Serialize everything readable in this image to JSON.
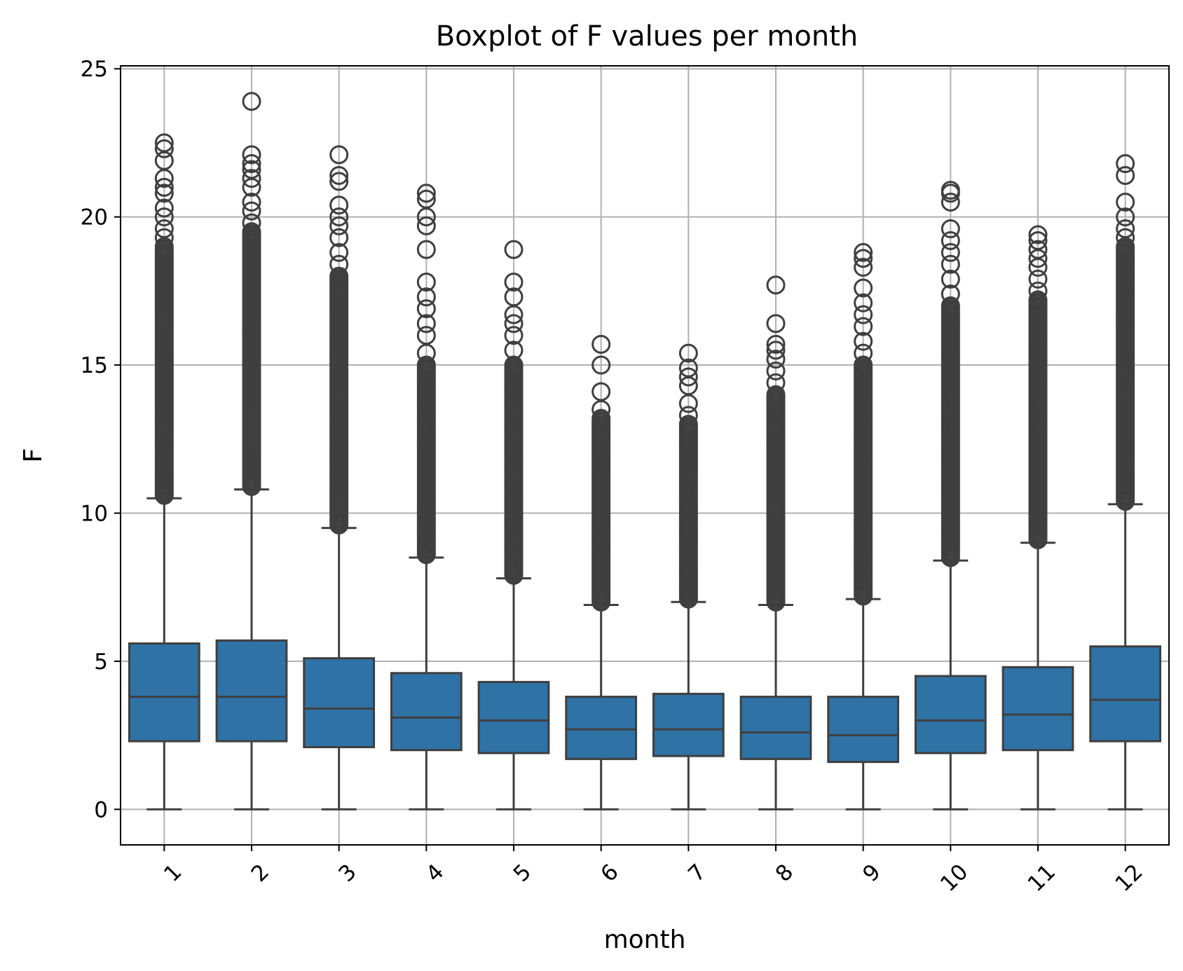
{
  "chart_data": {
    "type": "boxplot",
    "title": "Boxplot of F values per month",
    "xlabel": "month",
    "ylabel": "F",
    "ylim": [
      -1.2,
      25.1
    ],
    "yticks": [
      "0",
      "5",
      "10",
      "15",
      "20",
      "25"
    ],
    "grid": true,
    "box_color": "#2e72a6",
    "line_color": "#3f3f3f",
    "categories": [
      "1",
      "2",
      "3",
      "4",
      "5",
      "6",
      "7",
      "8",
      "9",
      "10",
      "11",
      "12"
    ],
    "boxes": [
      {
        "month": "1",
        "whislo": 0,
        "q1": 2.3,
        "med": 3.8,
        "q3": 5.6,
        "whishi": 10.5,
        "flier_band": [
          10.6,
          19.0
        ],
        "fliers": [
          19.3,
          19.6,
          20.0,
          20.3,
          20.8,
          21.0,
          21.3,
          21.9,
          22.3,
          22.5
        ]
      },
      {
        "month": "2",
        "whislo": 0,
        "q1": 2.3,
        "med": 3.8,
        "q3": 5.7,
        "whishi": 10.8,
        "flier_band": [
          10.9,
          19.5
        ],
        "fliers": [
          19.8,
          20.2,
          20.5,
          21.0,
          21.3,
          21.6,
          21.8,
          22.1,
          23.9
        ]
      },
      {
        "month": "3",
        "whislo": 0,
        "q1": 2.1,
        "med": 3.4,
        "q3": 5.1,
        "whishi": 9.5,
        "flier_band": [
          9.6,
          18.0
        ],
        "fliers": [
          18.4,
          18.8,
          19.3,
          19.7,
          20.0,
          20.4,
          21.2,
          21.4,
          22.1
        ]
      },
      {
        "month": "4",
        "whislo": 0,
        "q1": 2.0,
        "med": 3.1,
        "q3": 4.6,
        "whishi": 8.5,
        "flier_band": [
          8.6,
          15.0
        ],
        "fliers": [
          15.4,
          16.0,
          16.4,
          16.9,
          17.3,
          17.8,
          18.9,
          19.7,
          20.0,
          20.6,
          20.8
        ]
      },
      {
        "month": "5",
        "whislo": 0,
        "q1": 1.9,
        "med": 3.0,
        "q3": 4.3,
        "whishi": 7.8,
        "flier_band": [
          7.9,
          15.0
        ],
        "fliers": [
          15.5,
          16.0,
          16.4,
          16.7,
          17.3,
          17.8,
          18.9
        ]
      },
      {
        "month": "6",
        "whislo": 0,
        "q1": 1.7,
        "med": 2.7,
        "q3": 3.8,
        "whishi": 6.9,
        "flier_band": [
          7.0,
          13.2
        ],
        "fliers": [
          13.5,
          14.1,
          15.0,
          15.7
        ]
      },
      {
        "month": "7",
        "whislo": 0,
        "q1": 1.8,
        "med": 2.7,
        "q3": 3.9,
        "whishi": 7.0,
        "flier_band": [
          7.1,
          13.0
        ],
        "fliers": [
          13.3,
          13.7,
          14.3,
          14.6,
          14.9,
          15.4
        ]
      },
      {
        "month": "8",
        "whislo": 0,
        "q1": 1.7,
        "med": 2.6,
        "q3": 3.8,
        "whishi": 6.9,
        "flier_band": [
          7.0,
          14.0
        ],
        "fliers": [
          14.4,
          14.8,
          15.2,
          15.5,
          15.7,
          16.4,
          17.7
        ]
      },
      {
        "month": "9",
        "whislo": 0,
        "q1": 1.6,
        "med": 2.5,
        "q3": 3.8,
        "whishi": 7.1,
        "flier_band": [
          7.2,
          15.0
        ],
        "fliers": [
          15.4,
          15.8,
          16.3,
          16.7,
          17.1,
          17.6,
          18.3,
          18.6,
          18.8
        ]
      },
      {
        "month": "10",
        "whislo": 0,
        "q1": 1.9,
        "med": 3.0,
        "q3": 4.5,
        "whishi": 8.4,
        "flier_band": [
          8.5,
          17.0
        ],
        "fliers": [
          17.4,
          17.9,
          18.4,
          18.8,
          19.2,
          19.6,
          20.5,
          20.8,
          20.9
        ]
      },
      {
        "month": "11",
        "whislo": 0,
        "q1": 2.0,
        "med": 3.2,
        "q3": 4.8,
        "whishi": 9.0,
        "flier_band": [
          9.1,
          17.2
        ],
        "fliers": [
          17.5,
          17.9,
          18.3,
          18.6,
          18.9,
          19.2,
          19.4
        ]
      },
      {
        "month": "12",
        "whislo": 0,
        "q1": 2.3,
        "med": 3.7,
        "q3": 5.5,
        "whishi": 10.3,
        "flier_band": [
          10.4,
          19.0
        ],
        "fliers": [
          19.3,
          19.6,
          20.0,
          20.5,
          21.4,
          21.8
        ]
      }
    ]
  }
}
